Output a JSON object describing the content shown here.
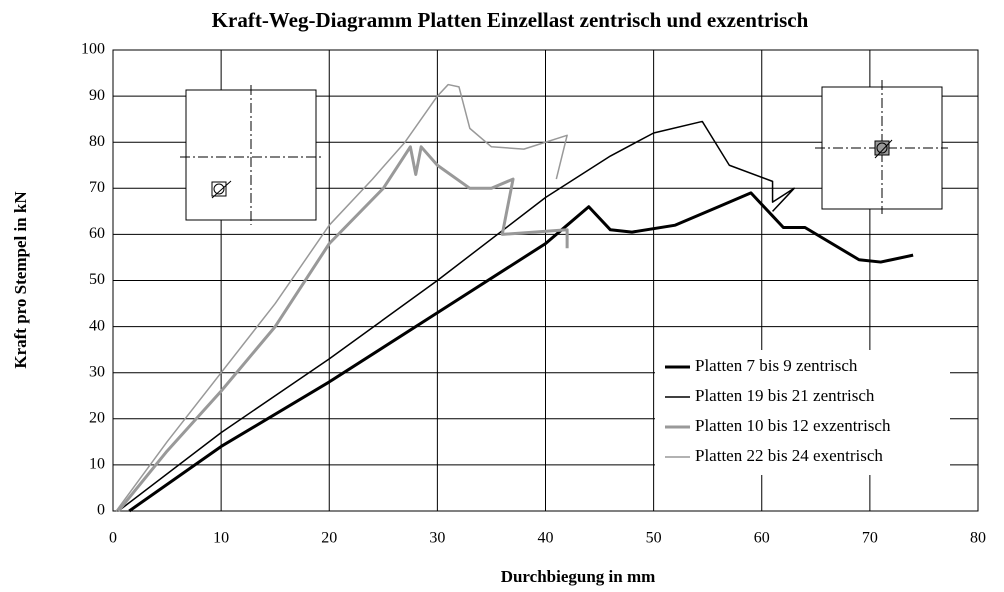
{
  "chart_data": {
    "type": "line",
    "title": "Kraft-Weg-Diagramm Platten Einzellast zentrisch und exzentrisch",
    "x_label": "Durchbiegung in mm",
    "y_label": "Kraft pro Stempel in kN",
    "xlim": [
      0,
      80
    ],
    "xticks": [
      0,
      10,
      20,
      30,
      40,
      50,
      60,
      70,
      80
    ],
    "ylim": [
      0,
      100
    ],
    "yticks": [
      0,
      10,
      20,
      30,
      40,
      50,
      60,
      70,
      80,
      90,
      100
    ],
    "grid": true,
    "legend": "lower right",
    "series": [
      {
        "name": "Platten 7 bis 9 zentrisch",
        "color": "#000000",
        "width": 3,
        "x": [
          1.5,
          10,
          20,
          30,
          40,
          42,
          44,
          46,
          48,
          52,
          56,
          59,
          61,
          62,
          64,
          69,
          71,
          74
        ],
        "values": [
          0,
          14,
          28,
          43,
          58,
          62,
          66,
          61,
          60.5,
          62,
          66,
          69,
          64,
          61.5,
          61.5,
          54.5,
          54,
          55.5
        ]
      },
      {
        "name": "Platten 19 bis 21 zentrisch",
        "color": "#000000",
        "width": 1.5,
        "x": [
          0.5,
          10,
          20,
          30,
          40,
          46,
          50,
          54.5,
          57,
          61,
          61,
          63,
          61
        ],
        "values": [
          0,
          17,
          33,
          50,
          68,
          77,
          82,
          84.5,
          75,
          71.5,
          67,
          70,
          65
        ]
      },
      {
        "name": "Platten 10 bis 12 exzentrisch",
        "color": "#999999",
        "width": 3,
        "x": [
          0.5,
          5,
          10,
          15,
          20,
          25,
          27.5,
          28,
          28.5,
          30,
          33,
          35,
          37,
          36,
          42,
          42
        ],
        "values": [
          0,
          13,
          26,
          40,
          58,
          70,
          79,
          73,
          79,
          75,
          70,
          70,
          72,
          60,
          61,
          57
        ]
      },
      {
        "name": "Platten 22 bis 24 exentrisch",
        "color": "#999999",
        "width": 1.5,
        "x": [
          0.3,
          5,
          10,
          15,
          20,
          24,
          27,
          30,
          31,
          32,
          33,
          35,
          38,
          42,
          41
        ],
        "values": [
          0,
          15,
          30,
          45,
          62,
          72,
          80,
          90,
          92.5,
          92,
          83,
          79,
          78.5,
          81.5,
          72
        ]
      }
    ]
  }
}
